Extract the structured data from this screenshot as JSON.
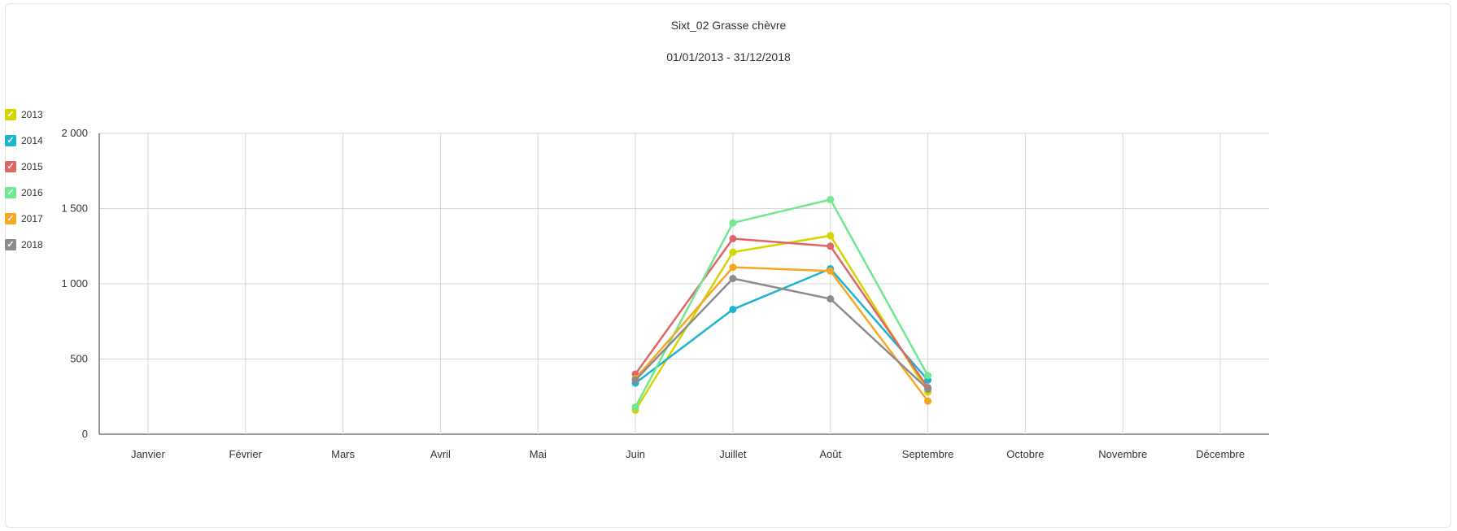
{
  "chart_data": {
    "type": "line",
    "title": "Sixt_02 Grasse chèvre",
    "subtitle": "01/01/2013 - 31/12/2018",
    "categories": [
      "Janvier",
      "Février",
      "Mars",
      "Avril",
      "Mai",
      "Juin",
      "Juillet",
      "Août",
      "Septembre",
      "Octobre",
      "Novembre",
      "Décembre"
    ],
    "y_ticks": [
      "0",
      "500",
      "1 000",
      "1 500",
      "2 000"
    ],
    "ylim": [
      0,
      2000
    ],
    "grid": true,
    "legend_position": "left",
    "series": [
      {
        "name": "2013",
        "color": "#d4d400",
        "values": [
          null,
          null,
          null,
          null,
          null,
          160,
          1210,
          1320,
          280,
          null,
          null,
          null
        ]
      },
      {
        "name": "2014",
        "color": "#1cb4cf",
        "values": [
          null,
          null,
          null,
          null,
          null,
          340,
          830,
          1100,
          360,
          null,
          null,
          null
        ]
      },
      {
        "name": "2015",
        "color": "#e06666",
        "values": [
          null,
          null,
          null,
          null,
          null,
          400,
          1300,
          1250,
          310,
          null,
          null,
          null
        ]
      },
      {
        "name": "2016",
        "color": "#6fe88f",
        "values": [
          null,
          null,
          null,
          null,
          null,
          180,
          1405,
          1560,
          390,
          null,
          null,
          null
        ]
      },
      {
        "name": "2017",
        "color": "#f5a623",
        "values": [
          null,
          null,
          null,
          null,
          null,
          370,
          1110,
          1085,
          220,
          null,
          null,
          null
        ]
      },
      {
        "name": "2018",
        "color": "#8c8c8c",
        "values": [
          null,
          null,
          null,
          null,
          null,
          360,
          1035,
          900,
          300,
          null,
          null,
          null
        ]
      }
    ]
  },
  "legend": {
    "checkmark": "✓"
  }
}
